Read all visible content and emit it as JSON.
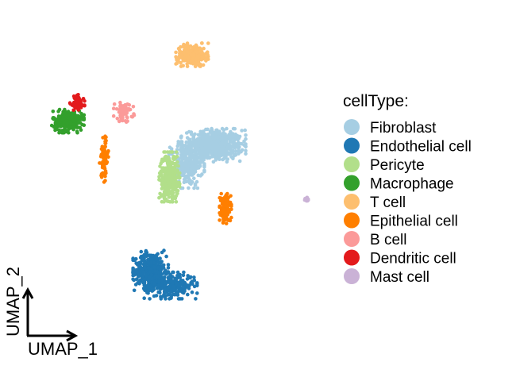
{
  "chart_data": {
    "type": "scatter",
    "title": "",
    "xlabel": "UMAP_1",
    "ylabel": "UMAP_2",
    "axes_visible": false,
    "axis_indicator": "arrows-bottom-left",
    "grid": false,
    "xlim": [
      -10,
      12
    ],
    "ylim": [
      -10,
      10
    ],
    "legend": {
      "title": "cellType:",
      "placement": "right"
    },
    "series": [
      {
        "name": "Fibroblast",
        "color": "#A6CEE3",
        "clusters": [
          {
            "cx": 4.2,
            "cy": 3.0,
            "sx": 1.1,
            "sy": 0.5,
            "n": 600
          },
          {
            "cx": 2.2,
            "cy": 1.7,
            "sx": 0.6,
            "sy": 0.7,
            "n": 260
          }
        ]
      },
      {
        "name": "Endothelial cell",
        "color": "#1F78B4",
        "clusters": [
          {
            "cx": -0.5,
            "cy": -5.3,
            "sx": 0.6,
            "sy": 0.6,
            "n": 380
          },
          {
            "cx": 1.0,
            "cy": -6.3,
            "sx": 0.9,
            "sy": 0.4,
            "n": 260
          }
        ]
      },
      {
        "name": "Pericyte",
        "color": "#B2DF8A",
        "clusters": [
          {
            "cx": 0.9,
            "cy": 0.9,
            "sx": 0.35,
            "sy": 0.75,
            "n": 320
          }
        ]
      },
      {
        "name": "Macrophage",
        "color": "#33A02C",
        "clusters": [
          {
            "cx": -6.7,
            "cy": 4.6,
            "sx": 0.55,
            "sy": 0.35,
            "n": 300
          }
        ]
      },
      {
        "name": "T cell",
        "color": "#FDBF6F",
        "clusters": [
          {
            "cx": 2.6,
            "cy": 9.0,
            "sx": 0.55,
            "sy": 0.35,
            "n": 220
          }
        ]
      },
      {
        "name": "Epithelial cell",
        "color": "#FF7F00",
        "clusters": [
          {
            "cx": 5.1,
            "cy": -1.2,
            "sx": 0.2,
            "sy": 0.45,
            "n": 140
          },
          {
            "cx": -4.0,
            "cy": 2.1,
            "sx": 0.15,
            "sy": 0.7,
            "n": 90
          }
        ]
      },
      {
        "name": "B cell",
        "color": "#FB9A99",
        "clusters": [
          {
            "cx": -2.5,
            "cy": 5.2,
            "sx": 0.35,
            "sy": 0.3,
            "n": 60
          }
        ]
      },
      {
        "name": "Dendritic cell",
        "color": "#E31A1C",
        "clusters": [
          {
            "cx": -6.0,
            "cy": 5.8,
            "sx": 0.25,
            "sy": 0.25,
            "n": 90
          }
        ]
      },
      {
        "name": "Mast cell",
        "color": "#CAB2D6",
        "clusters": [
          {
            "cx": 11.2,
            "cy": -0.6,
            "sx": 0.12,
            "sy": 0.08,
            "n": 15
          }
        ]
      }
    ]
  }
}
